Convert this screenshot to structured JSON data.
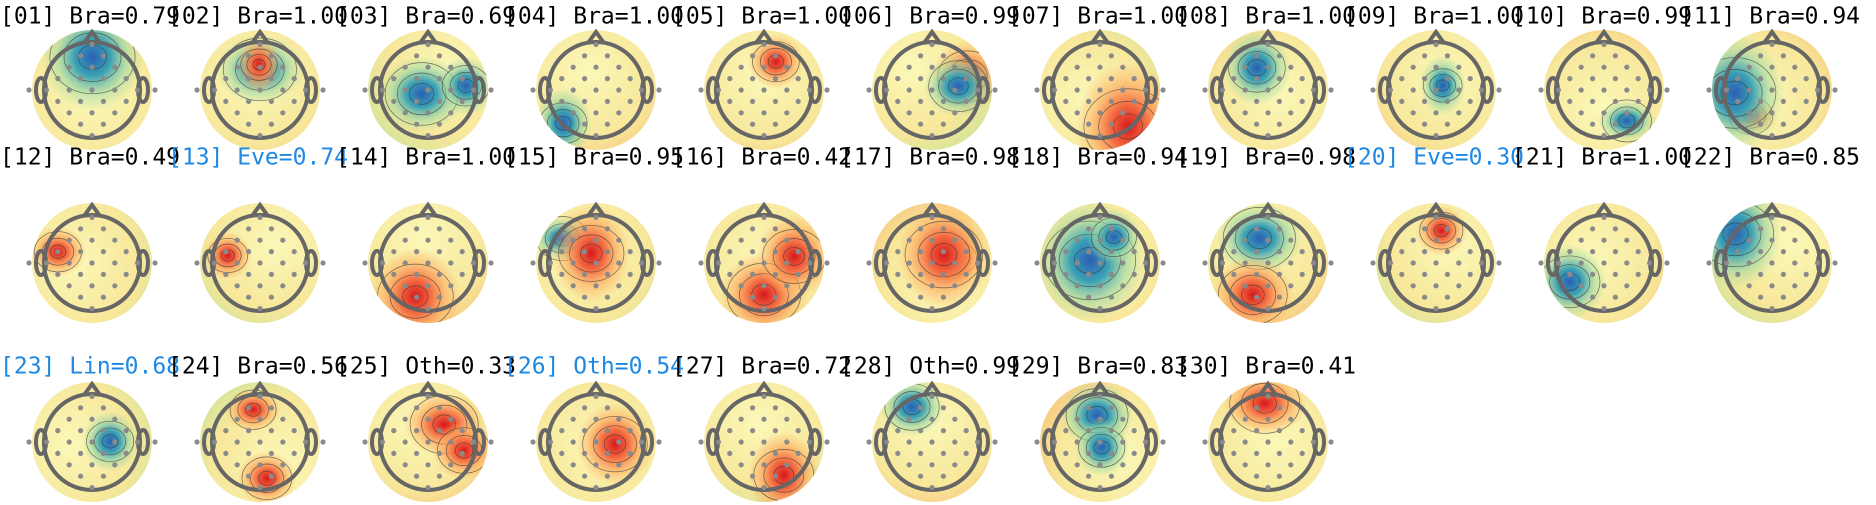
{
  "components": [
    {
      "title": "[01] Bra=0.79",
      "color": "#000000"
    },
    {
      "title": "[02] Bra=1.00",
      "color": "#000000"
    },
    {
      "title": "[03] Bra=0.69",
      "color": "#000000"
    },
    {
      "title": "[04] Bra=1.00",
      "color": "#000000"
    },
    {
      "title": "[05] Bra=1.00",
      "color": "#000000"
    },
    {
      "title": "[06] Bra=0.99",
      "color": "#000000"
    },
    {
      "title": "[07] Bra=1.00",
      "color": "#000000"
    },
    {
      "title": "[08] Bra=1.00",
      "color": "#000000"
    },
    {
      "title": "[09] Bra=1.00",
      "color": "#000000"
    },
    {
      "title": "[10] Bra=0.99",
      "color": "#000000"
    },
    {
      "title": "[11] Bra=0.94",
      "color": "#000000"
    },
    {
      "title": "[12] Bra=0.49",
      "color": "#000000"
    },
    {
      "title": "[13] Eve=0.74",
      "color": "#1e88e5"
    },
    {
      "title": "[14] Bra=1.00",
      "color": "#000000"
    },
    {
      "title": "[15] Bra=0.95",
      "color": "#000000"
    },
    {
      "title": "[16] Bra=0.42",
      "color": "#000000"
    },
    {
      "title": "[17] Bra=0.98",
      "color": "#000000"
    },
    {
      "title": "[18] Bra=0.94",
      "color": "#000000"
    },
    {
      "title": "[19] Bra=0.98",
      "color": "#000000"
    },
    {
      "title": "[20] Eve=0.30",
      "color": "#1e88e5"
    },
    {
      "title": "[21] Bra=1.00",
      "color": "#000000"
    },
    {
      "title": "[22] Bra=0.85",
      "color": "#000000"
    },
    {
      "title": "[23] Lin=0.68",
      "color": "#1e88e5"
    },
    {
      "title": "[24] Bra=0.56",
      "color": "#000000"
    },
    {
      "title": "[25] Oth=0.33",
      "color": "#000000"
    },
    {
      "title": "[26] Oth=0.54",
      "color": "#1e88e5"
    },
    {
      "title": "[27] Bra=0.72",
      "color": "#000000"
    },
    {
      "title": "[28] Oth=0.99",
      "color": "#000000"
    },
    {
      "title": "[29] Bra=0.83",
      "color": "#000000"
    },
    {
      "title": "[30] Bra=0.41",
      "color": "#000000"
    }
  ]
}
